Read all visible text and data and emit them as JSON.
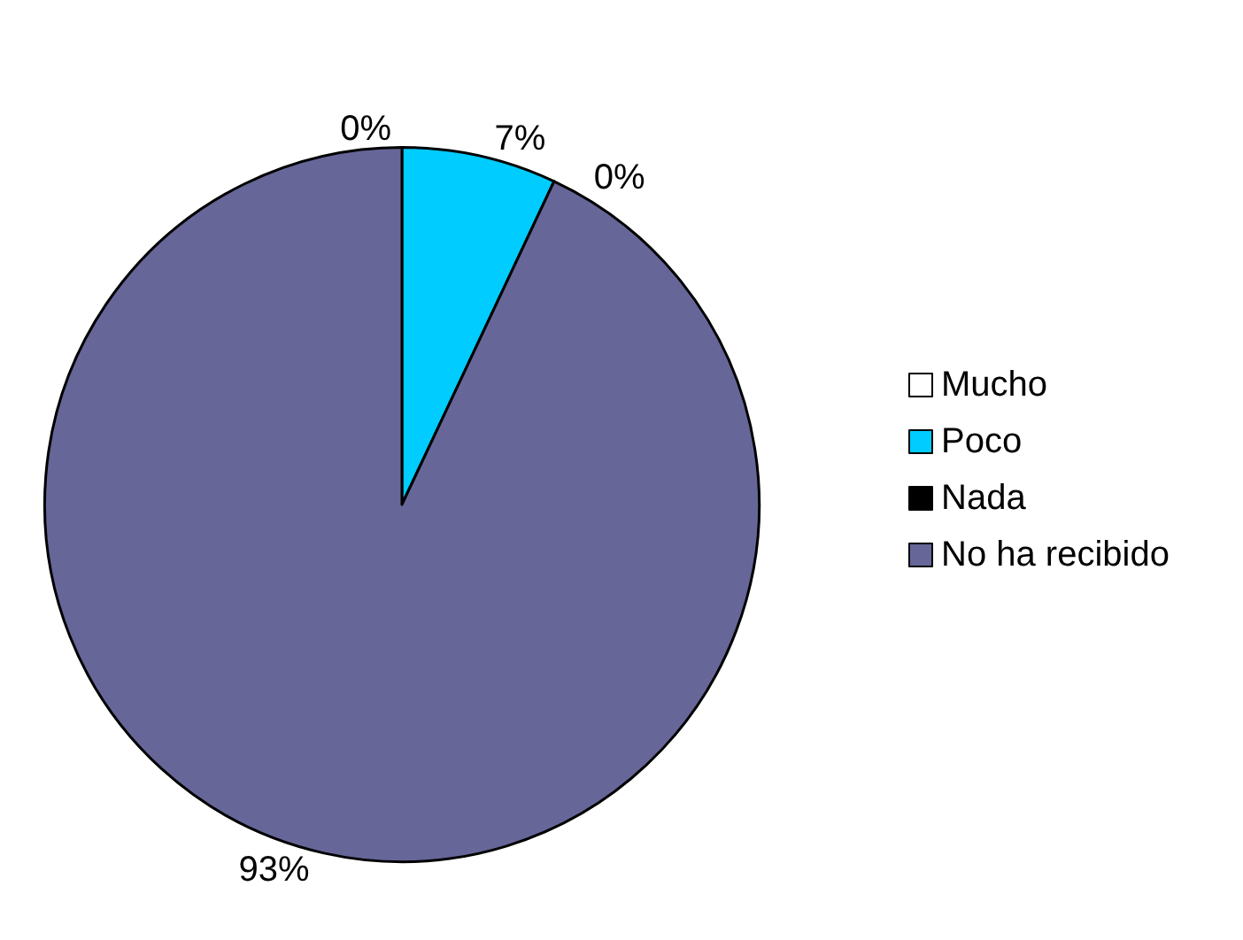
{
  "chart_data": {
    "type": "pie",
    "categories": [
      "Mucho",
      "Poco",
      "Nada",
      "No ha recibido"
    ],
    "values": [
      0,
      7,
      0,
      93
    ],
    "colors": [
      "#ffffff",
      "#00ccff",
      "#000000",
      "#666699"
    ],
    "value_labels": [
      "0%",
      "7%",
      "0%",
      "93%"
    ],
    "legend": "right"
  }
}
